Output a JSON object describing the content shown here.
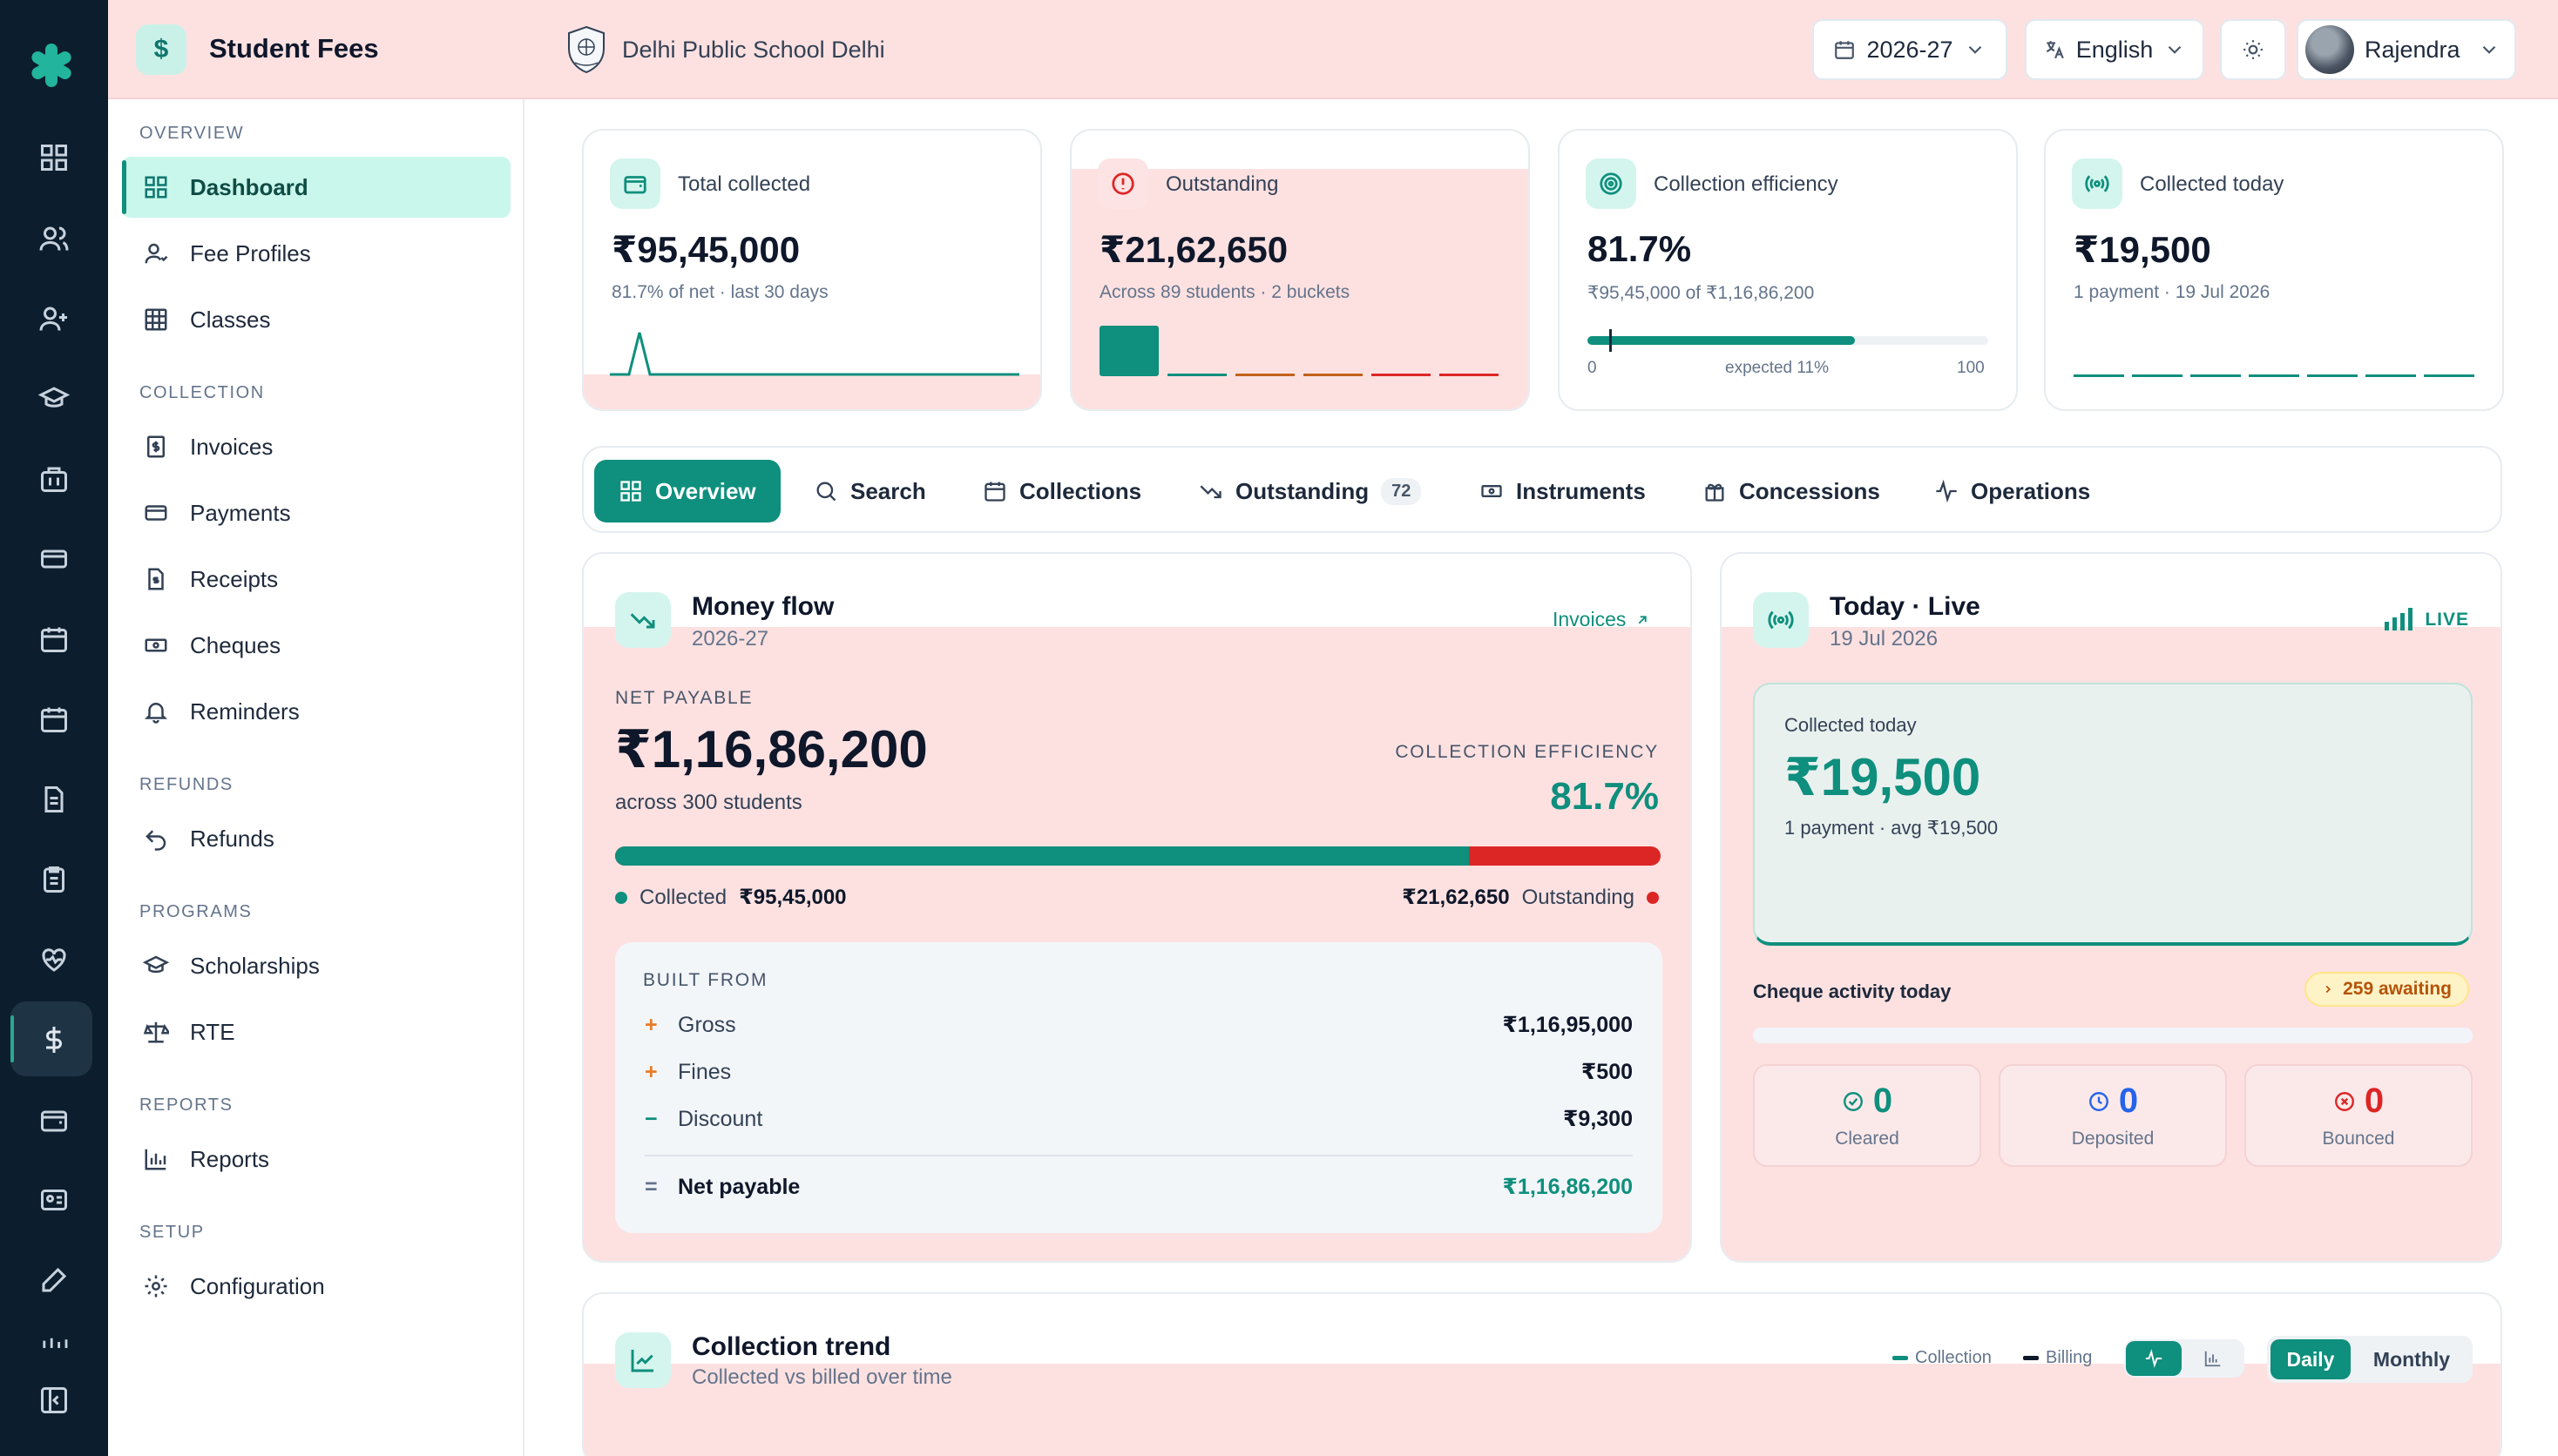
{
  "app": {
    "title": "Student Fees",
    "school": "Delhi Public School Delhi"
  },
  "header": {
    "year": "2026-27",
    "language": "English",
    "user": "Rajendra"
  },
  "sidebar": {
    "sections": {
      "overview": "OVERVIEW",
      "collection": "COLLECTION",
      "refunds": "REFUNDS",
      "programs": "PROGRAMS",
      "reports": "REPORTS",
      "setup": "SETUP"
    },
    "items": {
      "dashboard": "Dashboard",
      "fee_profiles": "Fee Profiles",
      "classes": "Classes",
      "invoices": "Invoices",
      "payments": "Payments",
      "receipts": "Receipts",
      "cheques": "Cheques",
      "reminders": "Reminders",
      "refunds": "Refunds",
      "scholarships": "Scholarships",
      "rte": "RTE",
      "reports": "Reports",
      "configuration": "Configuration"
    }
  },
  "stats": {
    "total": {
      "label": "Total collected",
      "value": "₹95,45,000",
      "sub": "81.7% of net · last 30 days"
    },
    "outstanding": {
      "label": "Outstanding",
      "value": "₹21,62,650",
      "sub": "Across 89 students · 2 buckets"
    },
    "efficiency": {
      "label": "Collection efficiency",
      "value": "81.7%",
      "sub": "₹95,45,000 of ₹1,16,86,200",
      "min": "0",
      "mid": "expected 11%",
      "max": "100",
      "progress": 0.817,
      "expected": 0.11
    },
    "today": {
      "label": "Collected today",
      "value": "₹19,500",
      "sub": "1 payment · 19 Jul 2026"
    }
  },
  "tabs": {
    "overview": "Overview",
    "search": "Search",
    "collections": "Collections",
    "outstanding": "Outstanding",
    "outstanding_count": "72",
    "instruments": "Instruments",
    "concessions": "Concessions",
    "operations": "Operations"
  },
  "money_flow": {
    "title": "Money flow",
    "subtitle": "2026-27",
    "link": "Invoices",
    "net_label": "NET PAYABLE",
    "net_value": "₹1,16,86,200",
    "net_sub": "across 300 students",
    "eff_label": "COLLECTION EFFICIENCY",
    "eff_value": "81.7%",
    "collected_share": 0.817,
    "collected_label": "Collected",
    "collected_value": "₹95,45,000",
    "outstanding_value": "₹21,62,650",
    "outstanding_label": "Outstanding",
    "built_from": "BUILT FROM",
    "rows": [
      {
        "sym": "+",
        "label": "Gross",
        "value": "₹1,16,95,000"
      },
      {
        "sym": "+",
        "label": "Fines",
        "value": "₹500"
      },
      {
        "sym": "−",
        "label": "Discount",
        "value": "₹9,300"
      }
    ],
    "total_sym": "=",
    "total_label": "Net payable",
    "total_value": "₹1,16,86,200"
  },
  "today_live": {
    "title": "Today · Live",
    "subtitle": "19 Jul 2026",
    "live": "LIVE",
    "collected_label": "Collected today",
    "collected_value": "₹19,500",
    "collected_sub": "1 payment · avg ₹19,500",
    "cheque_label": "Cheque activity today",
    "awaiting": "259 awaiting",
    "boxes": [
      {
        "value": "0",
        "label": "Cleared",
        "color": "#0f8f7d"
      },
      {
        "value": "0",
        "label": "Deposited",
        "color": "#2563eb"
      },
      {
        "value": "0",
        "label": "Bounced",
        "color": "#dc2626"
      }
    ]
  },
  "trend": {
    "title": "Collection trend",
    "subtitle": "Collected vs billed over time",
    "legend_collection": "Collection",
    "legend_billing": "Billing",
    "daily": "Daily",
    "monthly": "Monthly"
  }
}
